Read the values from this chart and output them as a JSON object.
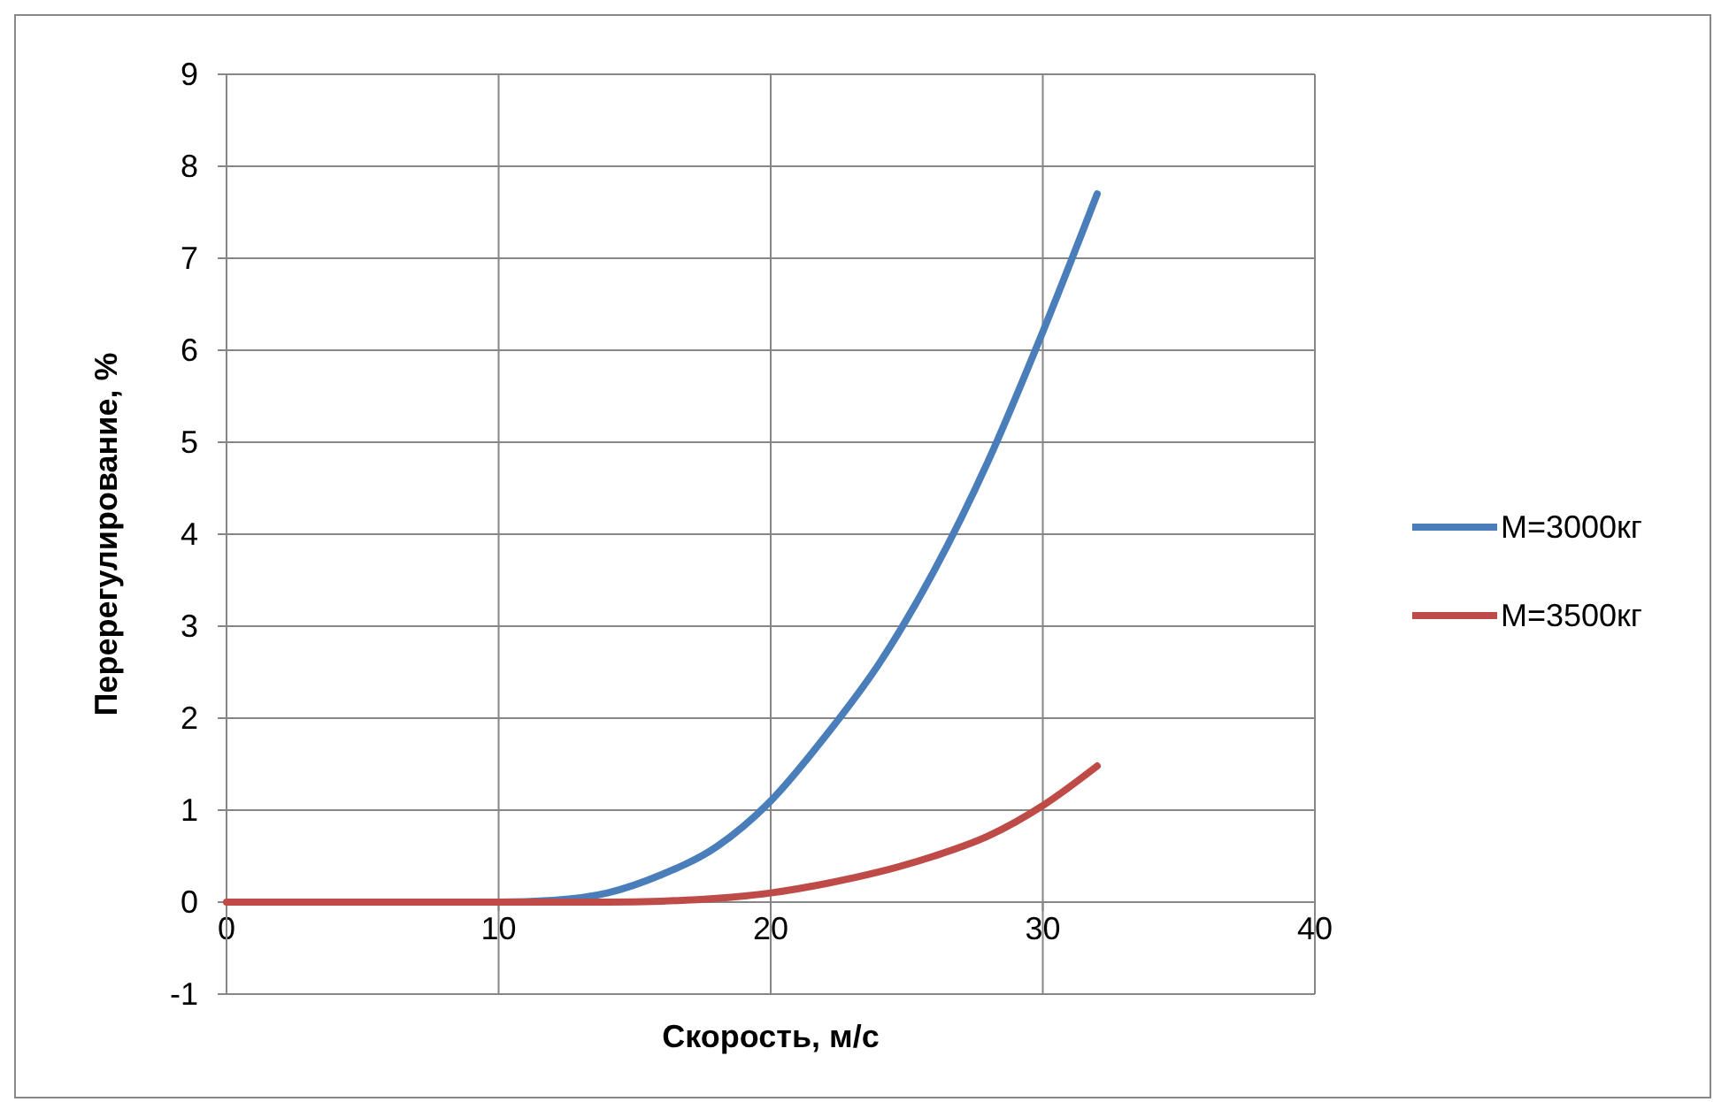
{
  "chart_data": {
    "type": "line",
    "xlabel": "Скорость, м/с",
    "ylabel": "Перерегулирование, %",
    "x": [
      0,
      2,
      4,
      6,
      8,
      10,
      12,
      14,
      16,
      18,
      20,
      22,
      24,
      26,
      28,
      30,
      32
    ],
    "series": [
      {
        "name": "M=3000кг",
        "color": "#4a7ebb",
        "values": [
          null,
          null,
          null,
          null,
          0,
          0,
          0.02,
          0.1,
          0.3,
          0.6,
          1.1,
          1.8,
          2.6,
          3.6,
          4.8,
          6.2,
          7.7
        ]
      },
      {
        "name": "M=3500кг",
        "color": "#be4b48",
        "values": [
          0,
          0,
          0,
          0,
          0,
          0,
          0,
          0,
          0.01,
          0.04,
          0.1,
          0.2,
          0.33,
          0.5,
          0.72,
          1.05,
          1.48
        ]
      }
    ],
    "xlim": [
      0,
      40
    ],
    "xticks": [
      0,
      10,
      20,
      30,
      40
    ],
    "ylim": [
      -1,
      9
    ],
    "yticks": [
      -1,
      0,
      1,
      2,
      3,
      4,
      5,
      6,
      7,
      8,
      9
    ],
    "grid": true,
    "legend": "right",
    "marker": "none",
    "line_style": "solid"
  }
}
